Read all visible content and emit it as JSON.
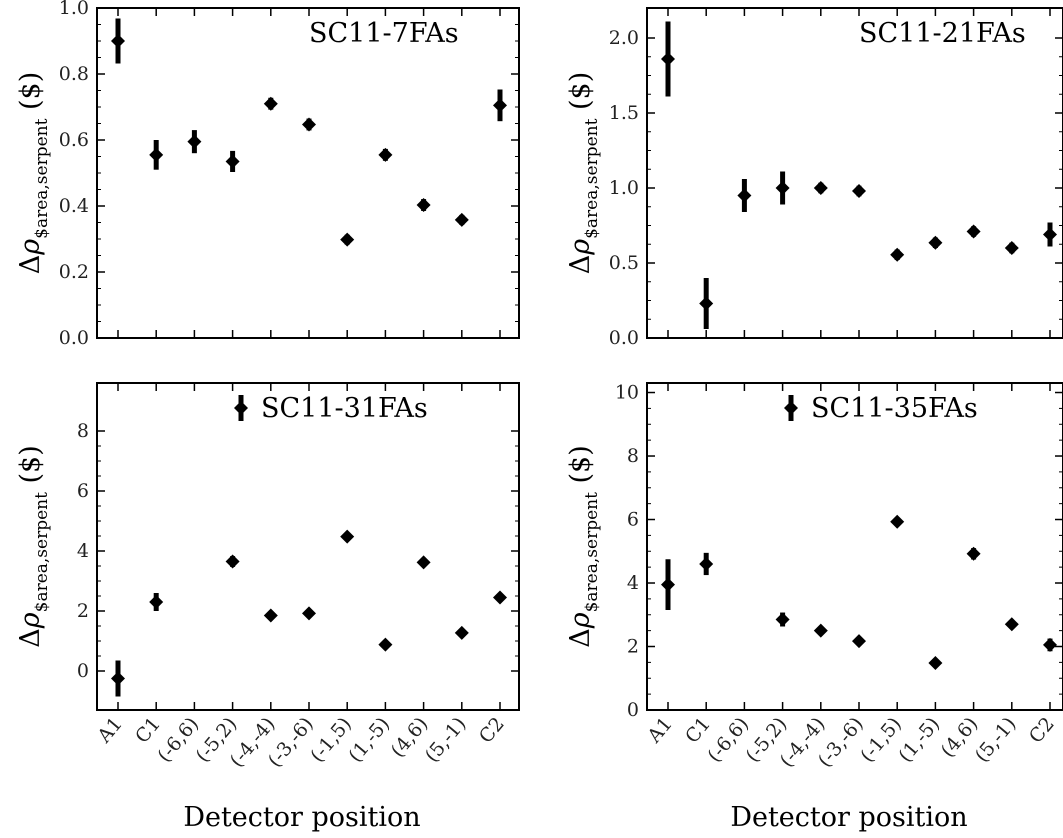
{
  "figure": {
    "xlabel": "Detector position"
  },
  "chart_data": [
    {
      "type": "scatter",
      "title": "SC11-7FAs",
      "ylabel": "Δρ$area,serpent ($)",
      "categories": [
        "A1",
        "C1",
        "(-6,6)",
        "(-5,2)",
        "(-4,-4)",
        "(-3,-6)",
        "(-1,5)",
        "(1,-5)",
        "(4,6)",
        "(5,-1)",
        "C2"
      ],
      "values": [
        0.9,
        0.555,
        0.595,
        0.535,
        0.71,
        0.647,
        0.298,
        0.555,
        0.403,
        0.358,
        0.705
      ],
      "errors": [
        0.068,
        0.045,
        0.035,
        0.032,
        0.018,
        0.018,
        0.015,
        0.018,
        0.018,
        0.015,
        0.048
      ],
      "ylim": [
        0,
        1.0
      ],
      "yticks": [
        0.0,
        0.2,
        0.4,
        0.6,
        0.8,
        1.0
      ],
      "ytick_labels": [
        "0.0",
        "0.2",
        "0.4",
        "0.6",
        "0.8",
        "1.0"
      ],
      "xlabel": "",
      "show_x_labels": false,
      "title_marker": false
    },
    {
      "type": "scatter",
      "title": "SC11-21FAs",
      "ylabel": "Δρ$area,serpent ($)",
      "categories": [
        "A1",
        "C1",
        "(-6,6)",
        "(-5,2)",
        "(-4,-4)",
        "(-3,-6)",
        "(-1,5)",
        "(1,-5)",
        "(4,6)",
        "(5,-1)",
        "C2"
      ],
      "values": [
        1.86,
        0.23,
        0.95,
        1.0,
        1.0,
        0.98,
        0.555,
        0.635,
        0.71,
        0.6,
        0.69
      ],
      "errors": [
        0.25,
        0.17,
        0.11,
        0.11,
        0.035,
        0.035,
        0.035,
        0.035,
        0.035,
        0.035,
        0.08
      ],
      "ylim": [
        0,
        2.2
      ],
      "yticks": [
        0.0,
        0.5,
        1.0,
        1.5,
        2.0
      ],
      "ytick_labels": [
        "0.0",
        "0.5",
        "1.0",
        "1.5",
        "2.0"
      ],
      "xlabel": "",
      "show_x_labels": false,
      "title_marker": false
    },
    {
      "type": "scatter",
      "title": "SC11-31FAs",
      "ylabel": "Δρ$area,serpent ($)",
      "categories": [
        "A1",
        "C1",
        "(-6,6)",
        "(-5,2)",
        "(-4,-4)",
        "(-3,-6)",
        "(-1,5)",
        "(1,-5)",
        "(4,6)",
        "(5,-1)",
        "C2"
      ],
      "values": [
        -0.25,
        2.3,
        null,
        3.65,
        1.85,
        1.92,
        4.48,
        0.88,
        3.62,
        1.27,
        2.45
      ],
      "errors": [
        0.6,
        0.3,
        0,
        0.18,
        0.08,
        0.08,
        0.08,
        0.08,
        0.08,
        0.08,
        0.1
      ],
      "ylim": [
        -1.3,
        9.6
      ],
      "yticks": [
        0,
        2,
        4,
        6,
        8
      ],
      "ytick_labels": [
        "0",
        "2",
        "4",
        "6",
        "8"
      ],
      "xlabel": "Detector position",
      "show_x_labels": true,
      "title_marker": true
    },
    {
      "type": "scatter",
      "title": "SC11-35FAs",
      "ylabel": "Δρ$area,serpent ($)",
      "categories": [
        "A1",
        "C1",
        "(-6,6)",
        "(-5,2)",
        "(-4,-4)",
        "(-3,-6)",
        "(-1,5)",
        "(1,-5)",
        "(4,6)",
        "(5,-1)",
        "C2"
      ],
      "values": [
        3.95,
        4.6,
        null,
        2.85,
        2.5,
        2.17,
        5.93,
        1.48,
        4.92,
        2.7,
        2.05
      ],
      "errors": [
        0.8,
        0.35,
        0,
        0.22,
        0.1,
        0.1,
        0.1,
        0.1,
        0.18,
        0.12,
        0.2
      ],
      "ylim": [
        0,
        10.3
      ],
      "yticks": [
        0,
        2,
        4,
        6,
        8,
        10
      ],
      "ytick_labels": [
        "0",
        "2",
        "4",
        "6",
        "8",
        "10"
      ],
      "xlabel": "Detector position",
      "show_x_labels": true,
      "title_marker": true
    }
  ]
}
